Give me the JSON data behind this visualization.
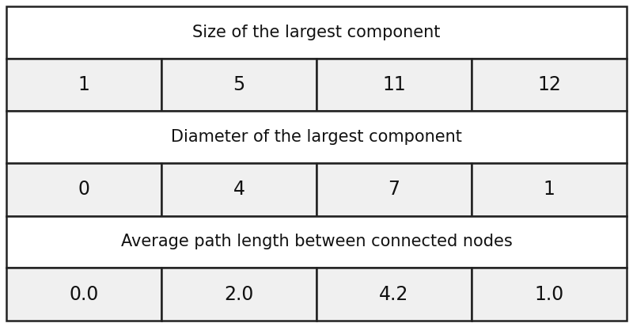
{
  "title1": "Size of the largest component",
  "row1": [
    "1",
    "5",
    "11",
    "12"
  ],
  "title2": "Diameter of the largest component",
  "row2": [
    "0",
    "4",
    "7",
    "1"
  ],
  "title3": "Average path length between connected nodes",
  "row3": [
    "0.0",
    "2.0",
    "4.2",
    "1.0"
  ],
  "header_bg": "#ffffff",
  "data_bg": "#f0f0f0",
  "border_color": "#222222",
  "text_color": "#111111",
  "title_fontsize": 15,
  "data_fontsize": 17,
  "font_family": "DejaVu Sans"
}
